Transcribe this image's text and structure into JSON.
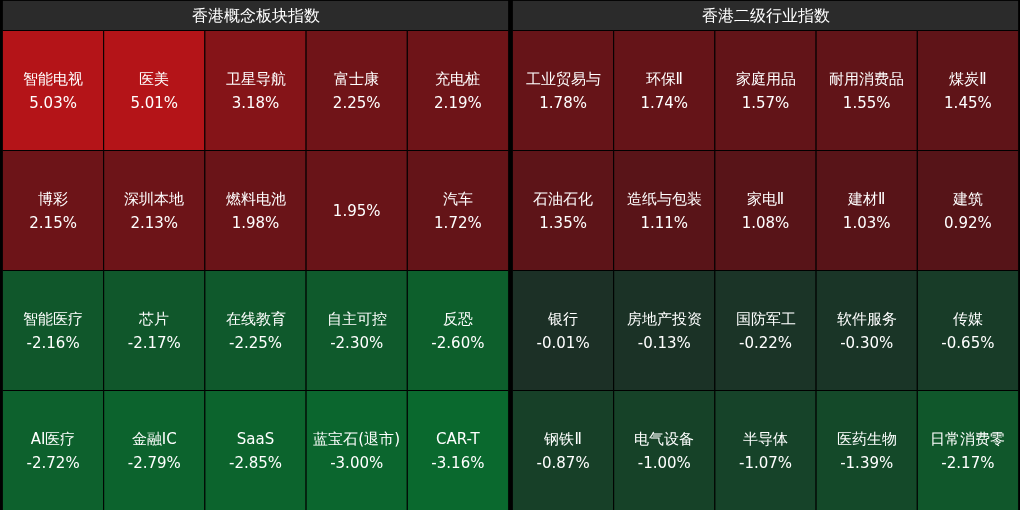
{
  "chart_data": [
    {
      "type": "other",
      "title": "香港概念板块指数",
      "categories": [
        "智能电视",
        "医美",
        "卫星导航",
        "富士康",
        "充电桩",
        "博彩",
        "深圳本地",
        "燃料电池",
        null,
        "汽车",
        "智能医疗",
        "芯片",
        "在线教育",
        "自主可控",
        "反恐",
        "AI医疗",
        "金融IC",
        "SaaS",
        "蓝宝石(退市)",
        "CAR-T"
      ],
      "values": [
        5.03,
        5.01,
        3.18,
        2.25,
        2.19,
        2.15,
        2.13,
        1.98,
        1.95,
        1.72,
        -2.16,
        -2.17,
        -2.25,
        -2.3,
        -2.6,
        -2.72,
        -2.79,
        -2.85,
        -3.0,
        -3.16
      ],
      "value_labels": [
        "5.03%",
        "5.01%",
        "3.18%",
        "2.25%",
        "2.19%",
        "2.15%",
        "2.13%",
        "1.98%",
        "1.95%",
        "1.72%",
        "-2.16%",
        "-2.17%",
        "-2.25%",
        "-2.30%",
        "-2.60%",
        "-2.72%",
        "-2.79%",
        "-2.85%",
        "-3.00%",
        "-3.16%"
      ]
    },
    {
      "type": "other",
      "title": "香港二级行业指数",
      "categories": [
        "工业贸易与",
        "环保Ⅱ",
        "家庭用品",
        "耐用消费品",
        "煤炭Ⅱ",
        "石油石化",
        "造纸与包装",
        "家电Ⅱ",
        "建材Ⅱ",
        "建筑",
        "银行",
        "房地产投资",
        "国防军工",
        "软件服务",
        "传媒",
        "钢铁Ⅱ",
        "电气设备",
        "半导体",
        "医药生物",
        "日常消费零"
      ],
      "values": [
        1.78,
        1.74,
        1.57,
        1.55,
        1.45,
        1.35,
        1.11,
        1.08,
        1.03,
        0.92,
        -0.01,
        -0.13,
        -0.22,
        -0.3,
        -0.65,
        -0.87,
        -1.0,
        -1.07,
        -1.39,
        -2.17
      ],
      "value_labels": [
        "1.78%",
        "1.74%",
        "1.57%",
        "1.55%",
        "1.45%",
        "1.35%",
        "1.11%",
        "1.08%",
        "1.03%",
        "0.92%",
        "-0.01%",
        "-0.13%",
        "-0.22%",
        "-0.30%",
        "-0.65%",
        "-0.87%",
        "-1.00%",
        "-1.07%",
        "-1.39%",
        "-2.17%"
      ]
    }
  ]
}
